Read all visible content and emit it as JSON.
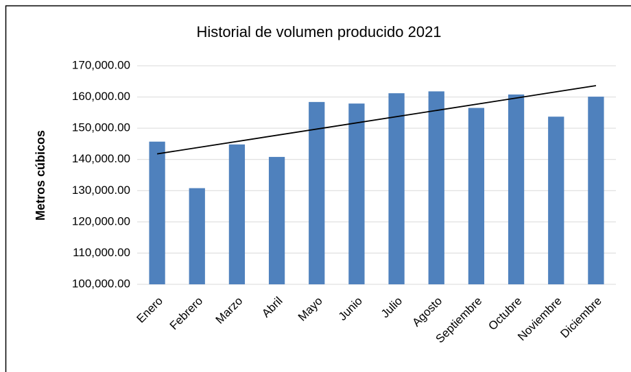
{
  "chart_data": {
    "type": "bar",
    "title": "Historial de volumen producido 2021",
    "y_axis_label": "Metros cúbicos",
    "categories": [
      "Enero",
      "Febrero",
      "Marzo",
      "Abril",
      "Mayo",
      "Junio",
      "Julio",
      "Agosto",
      "Septiembre",
      "Octubre",
      "Noviembre",
      "Diciembre"
    ],
    "values": [
      145700,
      130800,
      144800,
      140800,
      158400,
      157900,
      161200,
      161800,
      156500,
      160800,
      153700,
      160100
    ],
    "color": "#4f81bd",
    "ylim": [
      100000,
      170000
    ],
    "yticks": [
      {
        "value": 100000,
        "label": "100,000.00"
      },
      {
        "value": 110000,
        "label": "110,000.00"
      },
      {
        "value": 120000,
        "label": "120,000.00"
      },
      {
        "value": 130000,
        "label": "130,000.00"
      },
      {
        "value": 140000,
        "label": "140,000.00"
      },
      {
        "value": 150000,
        "label": "150,000.00"
      },
      {
        "value": 160000,
        "label": "160,000.00"
      },
      {
        "value": 170000,
        "label": "170,000.00"
      }
    ],
    "grid": true,
    "trendline": "linear",
    "trendline_color": "#000000"
  }
}
